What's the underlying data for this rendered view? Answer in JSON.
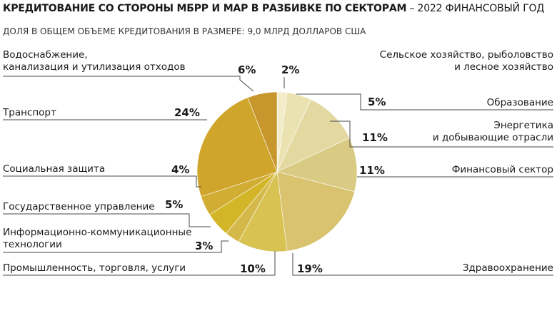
{
  "title_bold": "КРЕДИТОВАНИЕ СО СТОРОНЫ МБРР И МАР В РАЗБИВКЕ ПО СЕКТОРАМ",
  "title_rest": " – 2022 ФИНАНСОВЫЙ ГОД",
  "subtitle": "ДОЛЯ В ОБЩЕМ ОБЪЕМЕ КРЕДИТОВАНИЯ В РАЗМЕРЕ: 9,0 МЛРД ДОЛЛАРОВ США",
  "chart_data": {
    "type": "pie",
    "title": "КРЕДИТОВАНИЕ СО СТОРОНЫ МБРР И МАР В РАЗБИВКЕ ПО СЕКТОРАМ – 2022 ФИНАНСОВЫЙ ГОД",
    "subtitle": "ДОЛЯ В ОБЩЕМ ОБЪЕМЕ КРЕДИТОВАНИЯ В РАЗМЕРЕ: 9,0 МЛРД ДОЛЛАРОВ США",
    "unit": "%",
    "slices": [
      {
        "name": "Сельское хозяйство, рыболовство и лесное хозяйство",
        "lines": [
          "Сельское хозяйство, рыболовство",
          "и лесное хозяйство"
        ],
        "value": 2,
        "label": "2%",
        "color": "#f2ecc9"
      },
      {
        "name": "Образование",
        "lines": [
          "Образование"
        ],
        "value": 5,
        "label": "5%",
        "color": "#ebe2b2"
      },
      {
        "name": "Энергетика и добывающие отрасли",
        "lines": [
          "Энергетика",
          "и добывающие отрасли"
        ],
        "value": 11,
        "label": "11%",
        "color": "#e3d8a0"
      },
      {
        "name": "Финансовый сектор",
        "lines": [
          "Финансовый сектор"
        ],
        "value": 11,
        "label": "11%",
        "color": "#dacb84"
      },
      {
        "name": "Здравоохранение",
        "lines": [
          "Здравоохранение"
        ],
        "value": 19,
        "label": "19%",
        "color": "#d9c36e"
      },
      {
        "name": "Промышленность, торговля, услуги",
        "lines": [
          "Промышленность, торговля, услуги"
        ],
        "value": 10,
        "label": "10%",
        "color": "#d7c252"
      },
      {
        "name": "Информационно-коммуникационные технологии",
        "lines": [
          "Информационно-коммуникационные",
          "технологии"
        ],
        "value": 3,
        "label": "3%",
        "color": "#d4b94a"
      },
      {
        "name": "Государственное управление",
        "lines": [
          "Государственное управление"
        ],
        "value": 5,
        "label": "5%",
        "color": "#d3b528"
      },
      {
        "name": "Социальная защита",
        "lines": [
          "Социальная защита"
        ],
        "value": 4,
        "label": "4%",
        "color": "#d2ad33"
      },
      {
        "name": "Транспорт",
        "lines": [
          "Транспорт"
        ],
        "value": 24,
        "label": "24%",
        "color": "#d0a52b"
      },
      {
        "name": "Водоснабжение, канализация и утилизация отходов",
        "lines": [
          "Водоснабжение,",
          "канализация и утилизация отходов"
        ],
        "value": 6,
        "label": "6%",
        "color": "#c7962d"
      }
    ]
  }
}
